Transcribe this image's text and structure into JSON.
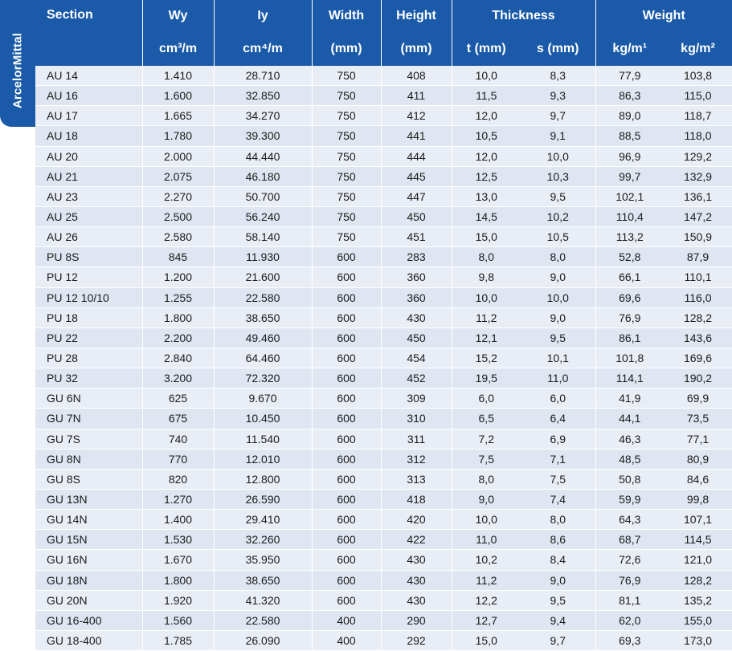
{
  "brand": "ArcelorMittal",
  "colors": {
    "header_bg": "#1a5aa8",
    "row_odd": "#e9eef6",
    "row_even": "#dfe6f1"
  },
  "header": {
    "section": "Section",
    "wy": "Wy",
    "wy_unit": "cm³/m",
    "iy": "Iy",
    "iy_unit": "cm⁴/m",
    "width": "Width",
    "width_unit": "(mm)",
    "height": "Height",
    "height_unit": "(mm)",
    "thickness": "Thickness",
    "t_unit": "t (mm)",
    "s_unit": "s (mm)",
    "weight": "Weight",
    "w1_unit": "kg/m¹",
    "w2_unit": "kg/m²"
  },
  "rows": [
    [
      "AU 14",
      "1.410",
      "28.710",
      "750",
      "408",
      "10,0",
      "8,3",
      "77,9",
      "103,8"
    ],
    [
      "AU 16",
      "1.600",
      "32.850",
      "750",
      "411",
      "11,5",
      "9,3",
      "86,3",
      "115,0"
    ],
    [
      "AU 17",
      "1.665",
      "34.270",
      "750",
      "412",
      "12,0",
      "9,7",
      "89,0",
      "118,7"
    ],
    [
      "AU 18",
      "1.780",
      "39.300",
      "750",
      "441",
      "10,5",
      "9,1",
      "88,5",
      "118,0"
    ],
    [
      "AU 20",
      "2.000",
      "44.440",
      "750",
      "444",
      "12,0",
      "10,0",
      "96,9",
      "129,2"
    ],
    [
      "AU 21",
      "2.075",
      "46.180",
      "750",
      "445",
      "12,5",
      "10,3",
      "99,7",
      "132,9"
    ],
    [
      "AU 23",
      "2.270",
      "50.700",
      "750",
      "447",
      "13,0",
      "9,5",
      "102,1",
      "136,1"
    ],
    [
      "AU 25",
      "2.500",
      "56.240",
      "750",
      "450",
      "14,5",
      "10,2",
      "110,4",
      "147,2"
    ],
    [
      "AU 26",
      "2.580",
      "58.140",
      "750",
      "451",
      "15,0",
      "10,5",
      "113,2",
      "150,9"
    ],
    [
      "PU 8S",
      "845",
      "11.930",
      "600",
      "283",
      "8,0",
      "8,0",
      "52,8",
      "87,9"
    ],
    [
      "PU 12",
      "1.200",
      "21.600",
      "600",
      "360",
      "9,8",
      "9,0",
      "66,1",
      "110,1"
    ],
    [
      "PU 12 10/10",
      "1.255",
      "22.580",
      "600",
      "360",
      "10,0",
      "10,0",
      "69,6",
      "116,0"
    ],
    [
      "PU 18",
      "1.800",
      "38.650",
      "600",
      "430",
      "11,2",
      "9,0",
      "76,9",
      "128,2"
    ],
    [
      "PU 22",
      "2.200",
      "49.460",
      "600",
      "450",
      "12,1",
      "9,5",
      "86,1",
      "143,6"
    ],
    [
      "PU 28",
      "2.840",
      "64.460",
      "600",
      "454",
      "15,2",
      "10,1",
      "101,8",
      "169,6"
    ],
    [
      "PU 32",
      "3.200",
      "72.320",
      "600",
      "452",
      "19,5",
      "11,0",
      "114,1",
      "190,2"
    ],
    [
      "GU 6N",
      "625",
      "9.670",
      "600",
      "309",
      "6,0",
      "6,0",
      "41,9",
      "69,9"
    ],
    [
      "GU 7N",
      "675",
      "10.450",
      "600",
      "310",
      "6,5",
      "6,4",
      "44,1",
      "73,5"
    ],
    [
      "GU 7S",
      "740",
      "11.540",
      "600",
      "311",
      "7,2",
      "6,9",
      "46,3",
      "77,1"
    ],
    [
      "GU 8N",
      "770",
      "12.010",
      "600",
      "312",
      "7,5",
      "7,1",
      "48,5",
      "80,9"
    ],
    [
      "GU 8S",
      "820",
      "12.800",
      "600",
      "313",
      "8,0",
      "7,5",
      "50,8",
      "84,6"
    ],
    [
      "GU 13N",
      "1.270",
      "26.590",
      "600",
      "418",
      "9,0",
      "7,4",
      "59,9",
      "99,8"
    ],
    [
      "GU 14N",
      "1.400",
      "29.410",
      "600",
      "420",
      "10,0",
      "8,0",
      "64,3",
      "107,1"
    ],
    [
      "GU 15N",
      "1.530",
      "32.260",
      "600",
      "422",
      "11,0",
      "8,6",
      "68,7",
      "114,5"
    ],
    [
      "GU 16N",
      "1.670",
      "35.950",
      "600",
      "430",
      "10,2",
      "8,4",
      "72,6",
      "121,0"
    ],
    [
      "GU 18N",
      "1.800",
      "38.650",
      "600",
      "430",
      "11,2",
      "9,0",
      "76,9",
      "128,2"
    ],
    [
      "GU 20N",
      "1.920",
      "41.320",
      "600",
      "430",
      "12,2",
      "9,5",
      "81,1",
      "135,2"
    ],
    [
      "GU 16-400",
      "1.560",
      "22.580",
      "400",
      "290",
      "12,7",
      "9,4",
      "62,0",
      "155,0"
    ],
    [
      "GU 18-400",
      "1.785",
      "26.090",
      "400",
      "292",
      "15,0",
      "9,7",
      "69,3",
      "173,0"
    ]
  ]
}
